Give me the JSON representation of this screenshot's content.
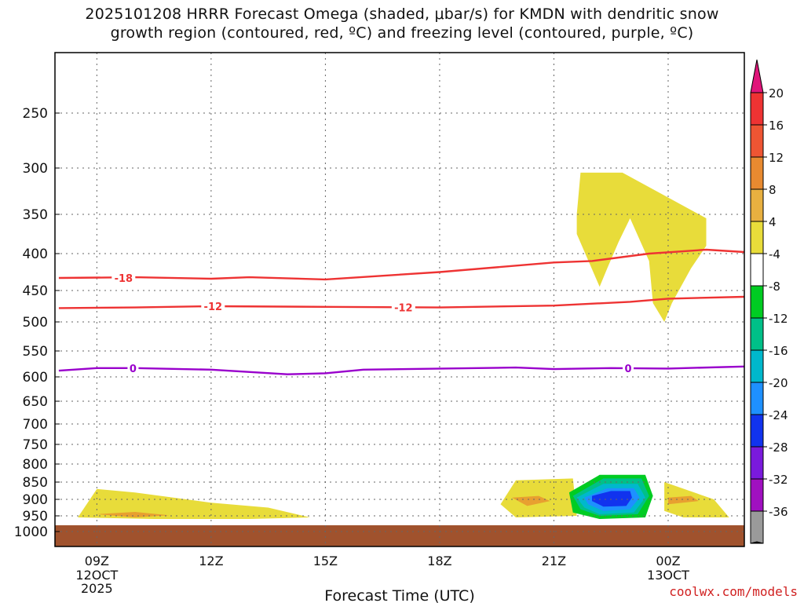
{
  "header": {
    "title_line1": "2025101208 HRRR Forecast Omega (shaded, μbar/s) for KMDN with dendritic snow",
    "title_line2": "growth region (contoured, red, ºC) and freezing level (contoured, purple, ºC)"
  },
  "footer": {
    "credit": "coolwx.com/models"
  },
  "colors": {
    "temp_contour": "#ee3333",
    "freezing_contour": "#9900cc",
    "ground": "#a0522d",
    "omega_pos4": "#e8dc3a",
    "omega_pos8": "#e8a030",
    "omega_neg4": "#00cc22",
    "omega_neg8": "#00c088",
    "omega_neg12": "#00b8cc",
    "omega_neg16": "#1e90ff",
    "omega_neg20": "#1133ee"
  },
  "chart_data": {
    "type": "time-height cross section",
    "xlabel": "Forecast Time (UTC)",
    "ylabel": "",
    "x_ticks": [
      {
        "label": "09Z",
        "sub": [
          "12OCT",
          "2025"
        ],
        "hour": 9
      },
      {
        "label": "12Z",
        "sub": [],
        "hour": 12
      },
      {
        "label": "15Z",
        "sub": [],
        "hour": 15
      },
      {
        "label": "18Z",
        "sub": [],
        "hour": 18
      },
      {
        "label": "21Z",
        "sub": [],
        "hour": 21
      },
      {
        "label": "00Z",
        "sub": [
          "13OCT"
        ],
        "hour": 24
      }
    ],
    "xlim_hours": [
      7.9,
      26.0
    ],
    "y_scale": "pressure (hPa), log-like",
    "y_ticks": [
      250,
      300,
      350,
      400,
      450,
      500,
      550,
      600,
      650,
      700,
      750,
      800,
      850,
      900,
      950,
      1000
    ],
    "ylim": [
      1000,
      200
    ],
    "grid": true,
    "colorbar": {
      "top_labels": [
        "20",
        "16",
        "12",
        "8",
        "4"
      ],
      "bottom_labels": [
        "-4",
        "-8",
        "-12",
        "-16",
        "-20",
        "-24",
        "-28",
        "-32",
        "-36"
      ],
      "top_colors": [
        "#ee3333",
        "#ee5533",
        "#e88a30",
        "#e8b040",
        "#e8dc3a",
        "#ffffff"
      ],
      "bottom_colors": [
        "#00cc22",
        "#00c088",
        "#00b8cc",
        "#1e90ff",
        "#1133ee",
        "#7a1adc",
        "#a010c0",
        "#9a9a9a"
      ],
      "top_arrow_color": "#e0157a",
      "bottom_arrow_color": "#000000"
    },
    "contours": [
      {
        "label": "-18",
        "color_key": "temp_contour",
        "points": [
          [
            8,
            433
          ],
          [
            10,
            432
          ],
          [
            12,
            434
          ],
          [
            13,
            432
          ],
          [
            15,
            435
          ],
          [
            18,
            425
          ],
          [
            21,
            412
          ],
          [
            22,
            410
          ],
          [
            23.5,
            400
          ],
          [
            25,
            395
          ],
          [
            26,
            398
          ]
        ],
        "label_at": [
          [
            9.7,
            433
          ]
        ]
      },
      {
        "label": "-12",
        "color_key": "temp_contour",
        "points": [
          [
            8,
            478
          ],
          [
            10,
            477
          ],
          [
            12,
            475
          ],
          [
            15,
            476
          ],
          [
            18,
            477
          ],
          [
            21,
            474
          ],
          [
            23,
            468
          ],
          [
            24,
            463
          ],
          [
            26,
            460
          ]
        ],
        "label_at": [
          [
            12.05,
            475
          ],
          [
            17.05,
            477
          ]
        ]
      },
      {
        "label": "0",
        "color_key": "freezing_contour",
        "points": [
          [
            8,
            588
          ],
          [
            9,
            583
          ],
          [
            10,
            583
          ],
          [
            12,
            586
          ],
          [
            14,
            595
          ],
          [
            15,
            593
          ],
          [
            16,
            586
          ],
          [
            20,
            582
          ],
          [
            21,
            585
          ],
          [
            22.5,
            583
          ],
          [
            24,
            584
          ],
          [
            26,
            580
          ]
        ],
        "label_at": [
          [
            9.95,
            583
          ],
          [
            22.95,
            583
          ]
        ]
      }
    ],
    "omega_regions": [
      {
        "value": 4,
        "color_key": "omega_pos4",
        "points": [
          [
            8.5,
            955
          ],
          [
            9,
            870
          ],
          [
            10,
            880
          ],
          [
            12,
            910
          ],
          [
            13.5,
            925
          ],
          [
            14.6,
            955
          ],
          [
            13,
            960
          ],
          [
            10.5,
            960
          ]
        ]
      },
      {
        "value": 8,
        "color_key": "omega_pos8",
        "points": [
          [
            9,
            945
          ],
          [
            10,
            938
          ],
          [
            10.9,
            948
          ],
          [
            10,
            955
          ]
        ]
      },
      {
        "value": 4,
        "color_key": "omega_pos4",
        "points": [
          [
            19.6,
            915
          ],
          [
            20,
            845
          ],
          [
            21.5,
            840
          ],
          [
            21.6,
            950
          ],
          [
            20,
            955
          ]
        ]
      },
      {
        "value": 8,
        "color_key": "omega_pos8",
        "points": [
          [
            19.9,
            895
          ],
          [
            20.6,
            890
          ],
          [
            20.9,
            905
          ],
          [
            20.3,
            920
          ]
        ]
      },
      {
        "value": 4,
        "color_key": "omega_pos4",
        "points": [
          [
            23.9,
            850
          ],
          [
            25.2,
            900
          ],
          [
            25.6,
            955
          ],
          [
            24.4,
            955
          ],
          [
            23.9,
            935
          ]
        ]
      },
      {
        "value": 8,
        "color_key": "omega_pos8",
        "points": [
          [
            24,
            895
          ],
          [
            24.6,
            890
          ],
          [
            24.8,
            905
          ],
          [
            24,
            915
          ]
        ]
      },
      {
        "value": 4,
        "color_key": "omega_pos4",
        "points": [
          [
            21.6,
            350
          ],
          [
            21.7,
            305
          ],
          [
            22.8,
            305
          ],
          [
            25.0,
            355
          ],
          [
            25.0,
            390
          ],
          [
            24.6,
            420
          ],
          [
            24.1,
            470
          ],
          [
            23.9,
            500
          ],
          [
            23.6,
            470
          ],
          [
            23.5,
            410
          ],
          [
            23.0,
            355
          ],
          [
            22.7,
            385
          ],
          [
            22.4,
            420
          ],
          [
            22.2,
            445
          ],
          [
            21.6,
            375
          ]
        ]
      },
      {
        "value": -4,
        "color_key": "omega_neg4",
        "points": [
          [
            21.4,
            880
          ],
          [
            22.2,
            830
          ],
          [
            23.4,
            830
          ],
          [
            23.6,
            890
          ],
          [
            23.4,
            955
          ],
          [
            22.2,
            960
          ],
          [
            21.5,
            940
          ]
        ]
      },
      {
        "value": -8,
        "color_key": "omega_neg8",
        "points": [
          [
            21.5,
            890
          ],
          [
            22.3,
            840
          ],
          [
            23.3,
            840
          ],
          [
            23.5,
            890
          ],
          [
            23.2,
            945
          ],
          [
            22.2,
            950
          ],
          [
            21.7,
            930
          ]
        ]
      },
      {
        "value": -12,
        "color_key": "omega_neg12",
        "points": [
          [
            21.6,
            895
          ],
          [
            22.3,
            855
          ],
          [
            23.2,
            855
          ],
          [
            23.4,
            895
          ],
          [
            23.1,
            940
          ],
          [
            22.2,
            945
          ],
          [
            21.8,
            925
          ]
        ]
      },
      {
        "value": -16,
        "color_key": "omega_neg16",
        "points": [
          [
            21.8,
            895
          ],
          [
            22.4,
            868
          ],
          [
            23.1,
            868
          ],
          [
            23.25,
            895
          ],
          [
            23.0,
            930
          ],
          [
            22.3,
            935
          ],
          [
            21.9,
            915
          ]
        ]
      },
      {
        "value": -20,
        "color_key": "omega_neg20",
        "points": [
          [
            22.0,
            890
          ],
          [
            22.5,
            876
          ],
          [
            23.0,
            876
          ],
          [
            23.05,
            895
          ],
          [
            22.9,
            920
          ],
          [
            22.3,
            922
          ],
          [
            22.0,
            905
          ]
        ]
      }
    ],
    "ground": {
      "top_hpa": 980,
      "color_key": "ground"
    }
  }
}
